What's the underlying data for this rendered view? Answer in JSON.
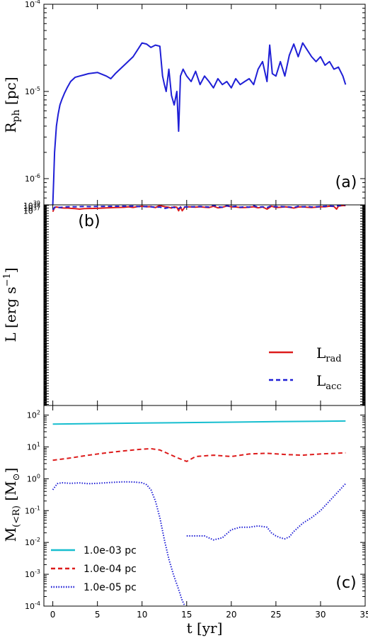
{
  "chart_data": [
    {
      "type": "line",
      "panel_label": "(a)",
      "ylabel": "R_ph [pc]",
      "ylabel_main": "R",
      "ylabel_sub": "ph",
      "ylabel_unit": " [pc]",
      "yscale": "log",
      "ylim": [
        5e-07,
        0.0001
      ],
      "xlim": [
        -1,
        35
      ],
      "yticks": [
        {
          "value": 1e-06,
          "mantissa": "10",
          "exp": "-6"
        },
        {
          "value": 1e-05,
          "mantissa": "10",
          "exp": "-5"
        },
        {
          "value": 0.0001,
          "mantissa": "10",
          "exp": "-4"
        }
      ],
      "series": [
        {
          "color": "#1f1fd6",
          "style": "solid",
          "x": [
            0,
            0.1,
            0.2,
            0.4,
            0.6,
            0.8,
            1.0,
            1.3,
            1.6,
            2.0,
            2.5,
            3.0,
            3.5,
            4.0,
            5.0,
            6.0,
            6.5,
            7.0,
            8.0,
            9.0,
            9.5,
            10.0,
            10.5,
            11.0,
            11.5,
            12.0,
            12.3,
            12.5,
            12.7,
            13.0,
            13.3,
            13.6,
            13.9,
            14.1,
            14.3,
            14.6,
            15.0,
            15.5,
            16.0,
            16.5,
            17.0,
            17.5,
            18.0,
            18.5,
            19.0,
            19.5,
            20.0,
            20.5,
            21.0,
            21.5,
            22.0,
            22.5,
            23.0,
            23.5,
            24.0,
            24.3,
            24.6,
            25.0,
            25.5,
            26.0,
            26.5,
            27.0,
            27.5,
            28.0,
            28.5,
            29.0,
            29.5,
            30.0,
            30.5,
            31.0,
            31.5,
            32.0,
            32.5,
            32.8
          ],
          "y": [
            5e-07,
            1e-06,
            2e-06,
            4e-06,
            5.5e-06,
            7e-06,
            8e-06,
            9.5e-06,
            1.1e-05,
            1.3e-05,
            1.45e-05,
            1.5e-05,
            1.55e-05,
            1.6e-05,
            1.65e-05,
            1.5e-05,
            1.4e-05,
            1.6e-05,
            2e-05,
            2.5e-05,
            3e-05,
            3.6e-05,
            3.5e-05,
            3.2e-05,
            3.4e-05,
            3.3e-05,
            1.5e-05,
            1.2e-05,
            1e-05,
            1.8e-05,
            9e-06,
            7e-06,
            1e-05,
            3.5e-06,
            1.5e-05,
            1.8e-05,
            1.5e-05,
            1.3e-05,
            1.7e-05,
            1.2e-05,
            1.5e-05,
            1.3e-05,
            1.1e-05,
            1.4e-05,
            1.2e-05,
            1.3e-05,
            1.1e-05,
            1.4e-05,
            1.2e-05,
            1.3e-05,
            1.4e-05,
            1.2e-05,
            1.8e-05,
            2.2e-05,
            1.3e-05,
            3.4e-05,
            1.6e-05,
            1.5e-05,
            2.2e-05,
            1.5e-05,
            2.6e-05,
            3.5e-05,
            2.5e-05,
            3.6e-05,
            3e-05,
            2.5e-05,
            2.2e-05,
            2.5e-05,
            2e-05,
            2.2e-05,
            1.8e-05,
            1.9e-05,
            1.5e-05,
            1.2e-05
          ]
        }
      ]
    },
    {
      "type": "line",
      "panel_label": "(b)",
      "ylabel": "L [erg s^-1]",
      "ylabel_main": "L [erg s",
      "ylabel_sup": "−1",
      "ylabel_end": "]",
      "yscale": "log",
      "ylim": [
        4e-37,
        1.6e+39
      ],
      "ylim_note": "",
      "xlim": [
        -1,
        35
      ],
      "yticks": [
        {
          "value": 1e+37,
          "mantissa": "10",
          "exp": "37"
        },
        {
          "value": 1e+38,
          "mantissa": "10",
          "exp": "38"
        },
        {
          "value": 1e+39,
          "mantissa": "10",
          "exp": "39"
        }
      ],
      "legend": {
        "position": "lower-right"
      },
      "series": [
        {
          "name": "L_rad",
          "name_main": "L",
          "name_sub": "rad",
          "color": "#dd1c1c",
          "style": "solid",
          "x": [
            0,
            0.2,
            0.4,
            0.7,
            1.0,
            1.3,
            1.6,
            2.0,
            2.5,
            3.0,
            3.5,
            4.0,
            5.0,
            6.0,
            7.0,
            8.0,
            8.5,
            9.0,
            9.5,
            10.0,
            10.5,
            11.0,
            11.5,
            12.0,
            12.3,
            12.6,
            13.0,
            13.3,
            13.6,
            13.9,
            14.1,
            14.3,
            14.5,
            14.8,
            15.2,
            15.6,
            16.0,
            16.5,
            17.0,
            17.5,
            18.0,
            18.5,
            19.0,
            19.5,
            20.0,
            20.5,
            21.0,
            21.5,
            22.0,
            22.5,
            23.0,
            23.5,
            24.0,
            24.5,
            25.0,
            25.5,
            26.0,
            26.5,
            27.0,
            27.5,
            28.0,
            28.5,
            29.0,
            29.5,
            30.0,
            30.5,
            31.0,
            31.5,
            31.8,
            32.0,
            32.3,
            32.6,
            32.8
          ],
          "y": [
            4e+36,
            1.5e+38,
            2.5e+38,
            1.8e+38,
            1.2e+38,
            1e+38,
            1.1e+38,
            8e+37,
            6e+37,
            4e+37,
            6e+37,
            7e+37,
            8e+37,
            1.2e+38,
            1.5e+38,
            2e+38,
            3e+38,
            1.8e+38,
            3.5e+38,
            5e+38,
            3e+38,
            3.5e+38,
            1.5e+38,
            1e+39,
            5e+38,
            3e+38,
            2e+38,
            1e+38,
            3e+38,
            2e+38,
            1e+37,
            3e+38,
            1e+37,
            2.5e+38,
            3e+38,
            2.5e+38,
            2.2e+38,
            3e+38,
            2e+38,
            1.5e+38,
            5e+38,
            1.2e+38,
            2e+38,
            6e+38,
            3e+38,
            2.5e+38,
            1.5e+38,
            1.5e+38,
            2.2e+38,
            3e+38,
            1.2e+38,
            2.5e+38,
            4e+37,
            5e+38,
            1.5e+38,
            2e+38,
            3e+38,
            2e+38,
            1e+38,
            2.5e+38,
            3e+38,
            2e+38,
            1.5e+38,
            2.2e+38,
            3e+38,
            3e+38,
            5e+38,
            4e+38,
            4e+37,
            5e+38,
            7e+38,
            9e+38,
            8e+38
          ]
        },
        {
          "name": "L_acc",
          "name_main": "L",
          "name_sub": "acc",
          "color": "#1f1fd6",
          "style": "dashed",
          "x": [
            0,
            0.2,
            0.4,
            0.7,
            1.0,
            1.3,
            1.6,
            2.0,
            2.5,
            3.0,
            3.5,
            4.0,
            5.0,
            6.0,
            7.0,
            8.0,
            9.0,
            9.5,
            10.0,
            10.5,
            11.0,
            11.5,
            12.0,
            12.3,
            12.6,
            13.0,
            13.3,
            13.6,
            13.9,
            14.1,
            14.3,
            14.5,
            14.8,
            15.2,
            15.6,
            16.0,
            16.5,
            17.0,
            17.5,
            18.0,
            18.5,
            19.0,
            19.5,
            20.0,
            20.5,
            21.0,
            21.5,
            22.0,
            22.5,
            23.0,
            23.5,
            24.0,
            24.5,
            25.0,
            25.5,
            26.0,
            26.5,
            27.0,
            27.5,
            28.0,
            28.5,
            29.0,
            29.5,
            30.0,
            30.5,
            31.0,
            31.5,
            32.0,
            32.3,
            32.6,
            32.8
          ],
          "y": [
            2e+37,
            2e+38,
            2.5e+38,
            1.6e+38,
            2e+38,
            2.5e+38,
            2.8e+38,
            3.5e+38,
            3e+38,
            3.5e+38,
            4e+38,
            3.5e+38,
            4e+38,
            4.5e+38,
            4.8e+38,
            5e+38,
            5.3e+38,
            4e+38,
            3.5e+38,
            4e+38,
            3e+38,
            2e+38,
            2.5e+38,
            1.2e+38,
            8e+37,
            1.5e+38,
            2e+38,
            1.5e+38,
            1.8e+38,
            6e+37,
            2e+38,
            8e+37,
            3e+38,
            2.5e+38,
            3e+38,
            3.2e+38,
            4e+38,
            3e+38,
            2.5e+38,
            1.1e+39,
            3e+38,
            2e+38,
            8e+38,
            3e+38,
            5e+38,
            2e+38,
            3e+38,
            2.2e+38,
            8e+38,
            2e+38,
            3e+38,
            1.5e+38,
            7e+38,
            3e+38,
            4e+38,
            3e+38,
            2.5e+38,
            1.5e+38,
            5e+38,
            3e+38,
            4e+38,
            2.5e+38,
            3e+38,
            4e+38,
            5e+38,
            6e+38,
            5e+38,
            7e+38,
            1e+39,
            1.5e+39,
            1.3e+39
          ]
        }
      ]
    },
    {
      "type": "line",
      "panel_label": "(c)",
      "ylabel": "M_(<R) [M_☉]",
      "ylabel_main": "M",
      "ylabel_sub": "(<R)",
      "ylabel_unit": " [M",
      "ylabel_unit_sub": "⊙",
      "ylabel_end": "]",
      "yscale": "log",
      "ylim": [
        0.0001,
        200
      ],
      "xlim": [
        -1,
        35
      ],
      "xlabel": "t [yr]",
      "xticks": [
        "0",
        "5",
        "10",
        "15",
        "20",
        "25",
        "30",
        "35"
      ],
      "xtick_values": [
        0,
        5,
        10,
        15,
        20,
        25,
        30,
        35
      ],
      "yticks": [
        {
          "value": 0.0001,
          "mantissa": "10",
          "exp": "-4"
        },
        {
          "value": 0.001,
          "mantissa": "10",
          "exp": "-3"
        },
        {
          "value": 0.01,
          "mantissa": "10",
          "exp": "-2"
        },
        {
          "value": 0.1,
          "mantissa": "10",
          "exp": "-1"
        },
        {
          "value": 1,
          "mantissa": "10",
          "exp": "0"
        },
        {
          "value": 10,
          "mantissa": "10",
          "exp": "1"
        },
        {
          "value": 100,
          "mantissa": "10",
          "exp": "2"
        }
      ],
      "legend": {
        "position": "lower-left"
      },
      "series": [
        {
          "name": "1.0e-03 pc",
          "color": "#17becf",
          "style": "solid",
          "x": [
            0,
            5,
            10,
            15,
            20,
            25,
            30,
            32.8
          ],
          "y": [
            52,
            54,
            56,
            58,
            60,
            62,
            64,
            65
          ]
        },
        {
          "name": "1.0e-04 pc",
          "color": "#dd1c1c",
          "style": "dashed",
          "x": [
            0,
            2,
            4,
            6,
            8,
            10,
            11,
            12,
            13,
            14,
            15,
            16,
            18,
            20,
            22,
            24,
            26,
            28,
            30,
            32.8
          ],
          "y": [
            3.8,
            4.5,
            5.5,
            6.5,
            7.5,
            8.5,
            8.8,
            8,
            6,
            4.5,
            3.5,
            5,
            5.5,
            5,
            6,
            6.3,
            5.8,
            5.5,
            6,
            6.5
          ]
        },
        {
          "name": "1.0e-05 pc",
          "color": "#1f1fd6",
          "style": "dotted",
          "x": [
            0,
            0.5,
            1,
            2,
            3,
            4,
            5,
            6,
            7,
            8,
            9,
            10,
            10.5,
            11,
            11.5,
            12,
            12.5,
            13,
            13.5,
            14,
            14.5,
            14.8
          ],
          "y": [
            0.45,
            0.7,
            0.75,
            0.72,
            0.74,
            0.7,
            0.72,
            0.75,
            0.78,
            0.8,
            0.79,
            0.75,
            0.65,
            0.45,
            0.2,
            0.06,
            0.012,
            0.003,
            0.001,
            0.0004,
            0.00015,
            0.0001
          ]
        },
        {
          "name": "",
          "color": "#1f1fd6",
          "style": "dotted",
          "continuation": true,
          "x": [
            15,
            16,
            17,
            18,
            19,
            20,
            21,
            22,
            23,
            24,
            24.5,
            25,
            25.5,
            26,
            26.5,
            27,
            28,
            29,
            30,
            31,
            32,
            32.8
          ],
          "y": [
            0.016,
            0.016,
            0.016,
            0.012,
            0.014,
            0.025,
            0.03,
            0.03,
            0.033,
            0.03,
            0.02,
            0.016,
            0.014,
            0.013,
            0.015,
            0.022,
            0.04,
            0.06,
            0.1,
            0.2,
            0.4,
            0.7
          ]
        }
      ]
    }
  ]
}
